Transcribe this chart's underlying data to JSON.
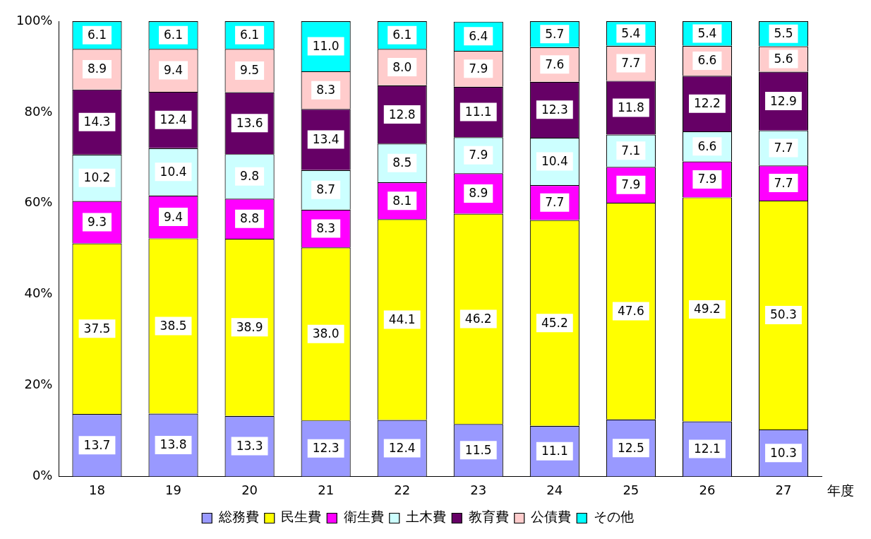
{
  "chart_data": {
    "type": "bar",
    "stacked": true,
    "xlabel": "年度",
    "categories": [
      "18",
      "19",
      "20",
      "21",
      "22",
      "23",
      "24",
      "25",
      "26",
      "27"
    ],
    "series": [
      {
        "name": "総務費",
        "color": "#9999ff",
        "values": [
          13.7,
          13.8,
          13.3,
          12.3,
          12.4,
          11.5,
          11.1,
          12.5,
          12.1,
          10.3
        ],
        "value_labels": [
          "13.7",
          "13.8",
          "13.3",
          "12.3",
          "12.4",
          "11.5",
          "11.1",
          "12.5",
          "12.1",
          "10.3"
        ]
      },
      {
        "name": "民生費",
        "color": "#ffff00",
        "values": [
          37.5,
          38.5,
          38.9,
          38.0,
          44.1,
          46.2,
          45.2,
          47.6,
          49.2,
          50.3
        ],
        "value_labels": [
          "37.5",
          "38.5",
          "38.9",
          "38.0",
          "44.1",
          "46.2",
          "45.2",
          "47.6",
          "49.2",
          "50.3"
        ]
      },
      {
        "name": "衛生費",
        "color": "#ff00ff",
        "values": [
          9.3,
          9.4,
          8.8,
          8.3,
          8.1,
          8.9,
          7.7,
          7.9,
          7.9,
          7.7
        ],
        "value_labels": [
          "9.3",
          "9.4",
          "8.8",
          "8.3",
          "8.1",
          "8.9",
          "7.7",
          "7.9",
          "7.9",
          "7.7"
        ]
      },
      {
        "name": "土木費",
        "color": "#ccffff",
        "values": [
          10.2,
          10.4,
          9.8,
          8.7,
          8.5,
          7.9,
          10.4,
          7.1,
          6.6,
          7.7
        ],
        "value_labels": [
          "10.2",
          "10.4",
          "9.8",
          "8.7",
          "8.5",
          "7.9",
          "10.4",
          "7.1",
          "6.6",
          "7.7"
        ]
      },
      {
        "name": "教育費",
        "color": "#660066",
        "values": [
          14.3,
          12.4,
          13.6,
          13.4,
          12.8,
          11.1,
          12.3,
          11.8,
          12.2,
          12.9
        ],
        "value_labels": [
          "14.3",
          "12.4",
          "13.6",
          "13.4",
          "12.8",
          "11.1",
          "12.3",
          "11.8",
          "12.2",
          "12.9"
        ]
      },
      {
        "name": "公債費",
        "color": "#ffcccc",
        "values": [
          8.9,
          9.4,
          9.5,
          8.3,
          8.0,
          7.9,
          7.6,
          7.7,
          6.6,
          5.6
        ],
        "value_labels": [
          "8.9",
          "9.4",
          "9.5",
          "8.3",
          "8.0",
          "7.9",
          "7.6",
          "7.7",
          "6.6",
          "5.6"
        ]
      },
      {
        "name": "その他",
        "color": "#00ffff",
        "values": [
          6.1,
          6.1,
          6.1,
          11.0,
          6.1,
          6.4,
          5.7,
          5.4,
          5.4,
          5.5
        ],
        "value_labels": [
          "6.1",
          "6.1",
          "6.1",
          "11.0",
          "6.1",
          "6.4",
          "5.7",
          "5.4",
          "5.4",
          "5.5"
        ]
      }
    ],
    "ylim": [
      0,
      100
    ],
    "yticks": [
      {
        "value": 0,
        "label": "0%"
      },
      {
        "value": 20,
        "label": "20%"
      },
      {
        "value": 40,
        "label": "40%"
      },
      {
        "value": 60,
        "label": "60%"
      },
      {
        "value": 80,
        "label": "80%"
      },
      {
        "value": 100,
        "label": "100%"
      }
    ],
    "grid": false,
    "legend": "bottom"
  }
}
